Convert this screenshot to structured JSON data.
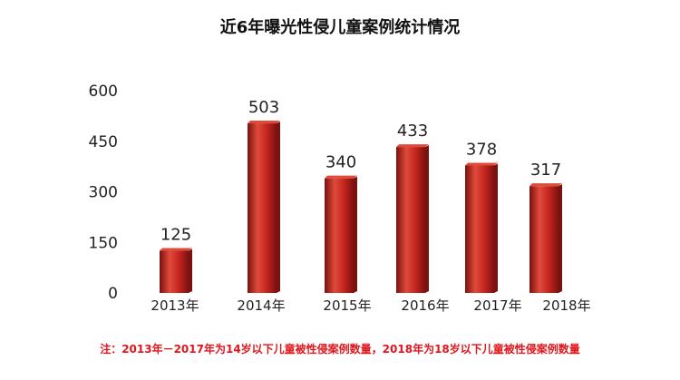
{
  "chart_data": {
    "type": "bar",
    "title": "近6年曝光性侵儿童案例统计情况",
    "categories": [
      "2013年",
      "2014年",
      "2015年",
      "2016年",
      "2017年",
      "2018年"
    ],
    "values": [
      125,
      503,
      340,
      433,
      378,
      317
    ],
    "yticks": [
      "0",
      "150",
      "300",
      "450",
      "600"
    ],
    "ylim": [
      0,
      600
    ],
    "grid": false,
    "xlabel": "",
    "ylabel": "",
    "note": "注：2013年－2017年为14岁以下儿童被性侵案例数量，2018年为18岁以下儿童被性侵案例数量"
  },
  "colors": {
    "bar": "#c0221c",
    "bar_dark": "#7a1210",
    "bar_light": "#e04a3a",
    "note": "#e0161d",
    "text": "#222222"
  }
}
